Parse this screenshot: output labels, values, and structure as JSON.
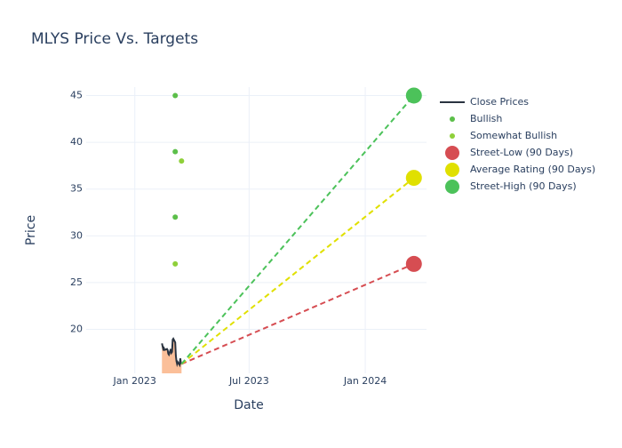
{
  "chart_data": {
    "type": "line",
    "title": "MLYS Price Vs. Targets",
    "x_label": "Date",
    "y_label": "Price",
    "xlim": [
      "2022-10-16",
      "2024-04-07"
    ],
    "ylim": [
      15.3,
      45.9
    ],
    "xticks": [
      {
        "value": "2023-01-01",
        "label": "Jan 2023"
      },
      {
        "value": "2023-07-01",
        "label": "Jul 2023"
      },
      {
        "value": "2024-01-01",
        "label": "Jan 2024"
      }
    ],
    "yticks": [
      20,
      25,
      30,
      35,
      40,
      45
    ],
    "grid": true,
    "series": [
      {
        "name": "Close Prices",
        "kind": "area-line",
        "color": "#2a3340",
        "fill": "#fbbf99",
        "x": [
          "2023-02-13",
          "2023-02-14",
          "2023-02-15",
          "2023-02-16",
          "2023-02-17",
          "2023-02-21",
          "2023-02-22",
          "2023-02-23",
          "2023-02-24",
          "2023-02-27",
          "2023-02-28",
          "2023-03-01",
          "2023-03-02",
          "2023-03-03",
          "2023-03-06",
          "2023-03-07",
          "2023-03-08",
          "2023-03-09",
          "2023-03-10",
          "2023-03-13",
          "2023-03-14",
          "2023-03-15",
          "2023-03-16"
        ],
        "values": [
          18.5,
          18.2,
          17.9,
          18.0,
          17.8,
          17.9,
          17.8,
          17.4,
          17.3,
          17.9,
          17.5,
          17.6,
          18.9,
          19.0,
          18.6,
          17.2,
          16.6,
          16.3,
          16.5,
          16.2,
          16.9,
          16.4,
          16.3
        ]
      },
      {
        "name": "Bullish",
        "kind": "points",
        "color": "#5cbf4a",
        "x": [
          "2023-03-06",
          "2023-03-06",
          "2023-03-06"
        ],
        "values": [
          45,
          39,
          32
        ]
      },
      {
        "name": "Somewhat Bullish",
        "kind": "points",
        "color": "#8fd03a",
        "x": [
          "2023-03-16",
          "2023-03-06"
        ],
        "values": [
          38,
          27
        ]
      },
      {
        "name": "Street-Low (90 Days)",
        "kind": "target",
        "color": "#d64d52",
        "x": [
          "2023-03-16",
          "2024-03-18"
        ],
        "values": [
          16.3,
          27
        ]
      },
      {
        "name": "Average Rating (90 Days)",
        "kind": "target",
        "color": "#e0e000",
        "x": [
          "2023-03-16",
          "2024-03-18"
        ],
        "values": [
          16.3,
          36.2
        ]
      },
      {
        "name": "Street-High (90 Days)",
        "kind": "target",
        "color": "#4cc25a",
        "x": [
          "2023-03-16",
          "2024-03-18"
        ],
        "values": [
          16.3,
          45
        ]
      }
    ]
  }
}
